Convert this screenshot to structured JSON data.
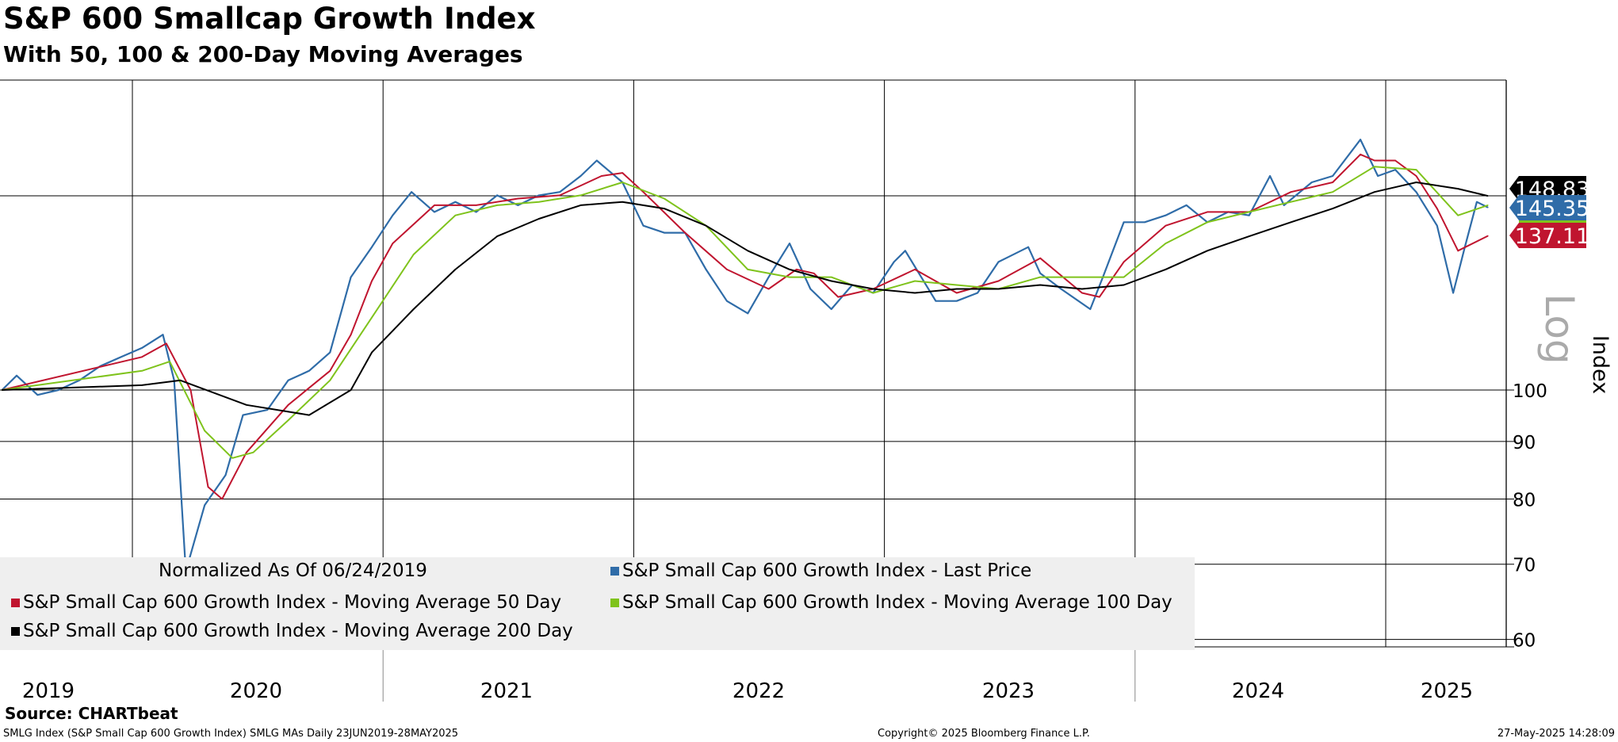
{
  "header": {
    "title": "S&P 600 Smallcap Growth Index",
    "subtitle": "With 50, 100 & 200-Day Moving Averages"
  },
  "footer": {
    "source": "Source: CHARTbeat",
    "ticker_info": "SMLG Index (S&P Small Cap 600 Growth Index) SMLG MAs  Daily 23JUN2019-28MAY2025",
    "copyright": "Copyright© 2025 Bloomberg Finance L.P.",
    "timestamp": "27-May-2025 14:28:09"
  },
  "chart_data": {
    "type": "line",
    "title": "S&P 600 Smallcap Growth Index",
    "subtitle": "With 50, 100 & 200-Day Moving Averages",
    "ylabel": "Index",
    "yscale": "log",
    "yscale_label": "Log",
    "ylim": [
      59,
      175
    ],
    "yticks": [
      60,
      70,
      80,
      90,
      100
    ],
    "xticks": [
      "2019",
      "2020",
      "2021",
      "2022",
      "2023",
      "2024",
      "2025"
    ],
    "x_range": [
      "2019-06-23",
      "2025-05-28"
    ],
    "grid": true,
    "legend_placement": "bottom-left",
    "legend_title": "Normalized As Of 06/24/2019",
    "reference_line": 148.83,
    "last_value_labels": [
      {
        "text": "148.83",
        "value": 148.83,
        "color": "#000000"
      },
      {
        "text": "145.35",
        "value": 145.35,
        "color": "#2f6ca8"
      },
      {
        "text": "137.11",
        "value": 137.11,
        "color": "#c0152f"
      }
    ],
    "series": [
      {
        "name": "S&P Small Cap 600 Growth Index - Last Price",
        "color": "#2f6ca8",
        "x": [
          "2019-06-24",
          "2019-07-15",
          "2019-08-15",
          "2019-09-15",
          "2019-10-15",
          "2019-11-15",
          "2019-12-15",
          "2020-01-15",
          "2020-02-15",
          "2020-03-01",
          "2020-03-18",
          "2020-04-15",
          "2020-05-15",
          "2020-06-10",
          "2020-07-15",
          "2020-08-15",
          "2020-09-15",
          "2020-10-15",
          "2020-11-15",
          "2020-12-15",
          "2021-01-15",
          "2021-02-12",
          "2021-03-15",
          "2021-04-15",
          "2021-05-15",
          "2021-06-15",
          "2021-07-15",
          "2021-08-15",
          "2021-09-15",
          "2021-10-15",
          "2021-11-08",
          "2021-12-15",
          "2022-01-15",
          "2022-02-15",
          "2022-03-15",
          "2022-04-15",
          "2022-05-15",
          "2022-06-15",
          "2022-07-15",
          "2022-08-15",
          "2022-09-15",
          "2022-10-15",
          "2022-11-15",
          "2022-12-15",
          "2023-01-15",
          "2023-02-01",
          "2023-03-15",
          "2023-04-15",
          "2023-05-15",
          "2023-06-15",
          "2023-07-28",
          "2023-08-15",
          "2023-09-15",
          "2023-10-27",
          "2023-11-15",
          "2023-12-15",
          "2024-01-15",
          "2024-02-15",
          "2024-03-15",
          "2024-04-15",
          "2024-05-15",
          "2024-06-15",
          "2024-07-15",
          "2024-08-05",
          "2024-09-15",
          "2024-10-15",
          "2024-11-25",
          "2024-12-20",
          "2025-01-15",
          "2025-02-15",
          "2025-03-15",
          "2025-04-08",
          "2025-04-25",
          "2025-05-12",
          "2025-05-28"
        ],
        "values": [
          100,
          103,
          99,
          100,
          102,
          105,
          107,
          109,
          112,
          102,
          69,
          79,
          84,
          95,
          96,
          102,
          104,
          108,
          126,
          134,
          143,
          150,
          144,
          147,
          144,
          149,
          146,
          149,
          150,
          155,
          160,
          153,
          140,
          138,
          138,
          128,
          120,
          117,
          126,
          135,
          123,
          118,
          124,
          122,
          130,
          133,
          120,
          120,
          122,
          130,
          134,
          127,
          123,
          118,
          126,
          141,
          141,
          143,
          146,
          141,
          144,
          143,
          155,
          146,
          153,
          155,
          167,
          155,
          157,
          150,
          140,
          122,
          134,
          147,
          145.35
        ]
      },
      {
        "name": "S&P Small Cap 600 Growth Index - Moving Average 50 Day",
        "color": "#c0152f",
        "x": [
          "2019-06-24",
          "2020-01-15",
          "2020-02-20",
          "2020-03-25",
          "2020-04-20",
          "2020-05-10",
          "2020-06-15",
          "2020-08-15",
          "2020-10-15",
          "2020-11-15",
          "2020-12-15",
          "2021-01-15",
          "2021-03-15",
          "2021-05-15",
          "2021-07-15",
          "2021-09-15",
          "2021-11-15",
          "2021-12-15",
          "2022-01-15",
          "2022-03-15",
          "2022-05-15",
          "2022-07-15",
          "2022-08-25",
          "2022-09-20",
          "2022-10-25",
          "2022-12-15",
          "2023-02-15",
          "2023-04-15",
          "2023-06-15",
          "2023-08-15",
          "2023-10-15",
          "2023-11-10",
          "2023-12-15",
          "2024-02-15",
          "2024-04-15",
          "2024-06-15",
          "2024-08-15",
          "2024-10-15",
          "2024-11-25",
          "2024-12-15",
          "2025-01-15",
          "2025-02-15",
          "2025-03-15",
          "2025-04-15",
          "2025-05-28"
        ],
        "values": [
          100,
          107,
          110,
          100,
          82,
          80,
          88,
          97,
          104,
          112,
          125,
          135,
          146,
          146,
          148,
          149,
          155,
          156,
          150,
          138,
          128,
          123,
          128,
          127,
          121,
          123,
          128,
          122,
          125,
          131,
          122,
          121,
          130,
          140,
          144,
          144,
          150,
          153,
          162,
          160,
          160,
          155,
          145,
          133,
          137.11
        ]
      },
      {
        "name": "S&P Small Cap 600 Growth Index - Moving Average 100 Day",
        "color": "#7fc31c",
        "x": [
          "2019-06-24",
          "2020-01-15",
          "2020-02-25",
          "2020-04-15",
          "2020-05-25",
          "2020-06-25",
          "2020-08-15",
          "2020-10-15",
          "2020-12-15",
          "2021-02-15",
          "2021-04-15",
          "2021-06-15",
          "2021-08-15",
          "2021-10-15",
          "2021-12-15",
          "2022-02-15",
          "2022-04-15",
          "2022-06-15",
          "2022-08-15",
          "2022-10-15",
          "2022-12-15",
          "2023-02-15",
          "2023-04-15",
          "2023-06-15",
          "2023-08-15",
          "2023-10-15",
          "2023-12-15",
          "2024-02-15",
          "2024-04-15",
          "2024-06-15",
          "2024-08-15",
          "2024-10-15",
          "2024-12-15",
          "2025-02-15",
          "2025-04-15",
          "2025-05-28"
        ],
        "values": [
          100,
          104,
          106,
          92,
          87,
          88,
          94,
          102,
          116,
          132,
          143,
          146,
          147,
          149,
          153,
          148,
          140,
          128,
          126,
          126,
          122,
          125,
          124,
          123,
          126,
          126,
          126,
          135,
          141,
          144,
          147,
          150,
          158,
          157,
          143,
          146
        ]
      },
      {
        "name": "S&P Small Cap 600 Growth Index - Moving Average 200 Day",
        "color": "#000000",
        "x": [
          "2019-06-24",
          "2020-01-15",
          "2020-03-10",
          "2020-06-15",
          "2020-09-15",
          "2020-11-15",
          "2020-12-15",
          "2021-02-15",
          "2021-04-15",
          "2021-06-15",
          "2021-08-15",
          "2021-10-15",
          "2021-12-15",
          "2022-02-15",
          "2022-04-15",
          "2022-06-15",
          "2022-08-15",
          "2022-10-15",
          "2022-12-15",
          "2023-02-15",
          "2023-04-15",
          "2023-06-15",
          "2023-08-15",
          "2023-10-15",
          "2023-12-15",
          "2024-02-15",
          "2024-04-15",
          "2024-06-15",
          "2024-08-15",
          "2024-10-15",
          "2024-12-15",
          "2025-02-15",
          "2025-04-15",
          "2025-05-28"
        ],
        "values": [
          100,
          101,
          102,
          97,
          95,
          100,
          108,
          118,
          128,
          137,
          142,
          146,
          147,
          145,
          140,
          133,
          128,
          125,
          123,
          122,
          123,
          123,
          124,
          123,
          124,
          128,
          133,
          137,
          141,
          145,
          150,
          153,
          151,
          148.83
        ]
      }
    ]
  }
}
